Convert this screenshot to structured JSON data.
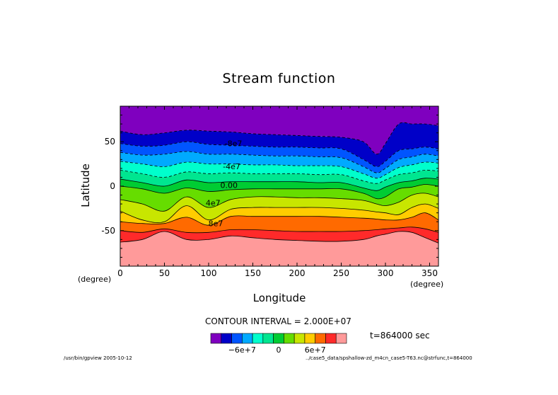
{
  "chart_data": {
    "type": "heatmap",
    "title": "Stream function",
    "xlabel": "Longitude",
    "ylabel": "Latitude",
    "x_unit": "(degree)",
    "y_unit": "(degree)",
    "xlim": [
      0,
      360
    ],
    "ylim": [
      -90,
      90
    ],
    "xticks": [
      0,
      50,
      100,
      150,
      200,
      250,
      300,
      350
    ],
    "yticks": [
      -50,
      0,
      50
    ],
    "contour_labels": [
      {
        "text": "-8e7",
        "lon": 128,
        "lat": 45
      },
      {
        "text": "-4e7",
        "lon": 126,
        "lat": 19
      },
      {
        "text": "0.00",
        "lon": 123,
        "lat": -2
      },
      {
        "text": "4e7",
        "lon": 105,
        "lat": -22
      },
      {
        "text": "8e7",
        "lon": 108,
        "lat": -45
      }
    ],
    "contour_interval": "CONTOUR INTERVAL = 2.000E+07",
    "time_label": "t=864000 sec",
    "colorbar": {
      "colors": [
        "#7f00bf",
        "#0000c8",
        "#0055ff",
        "#00aaff",
        "#00ffcc",
        "#00e690",
        "#00cc33",
        "#66dd00",
        "#c8e600",
        "#ffcc00",
        "#ff6a00",
        "#ff2a2a",
        "#ff9a9a"
      ],
      "tick_labels": [
        {
          "text": "−6e+7",
          "pos": 3
        },
        {
          "text": "0",
          "pos": 6.5
        },
        {
          "text": "6e+7",
          "pos": 10
        }
      ]
    },
    "levels_lat_profile": {
      "description_none": "",
      "longitudes": [
        0,
        25,
        50,
        75,
        100,
        125,
        150,
        175,
        200,
        225,
        250,
        275,
        290,
        300,
        315,
        330,
        345,
        360
      ],
      "boundaries": [
        [
          62,
          58,
          60,
          63,
          62,
          61,
          59,
          58,
          57,
          56,
          55,
          50,
          36,
          48,
          70,
          70,
          70,
          68
        ],
        [
          48,
          45,
          46,
          50,
          47,
          46,
          45,
          44,
          44,
          43,
          42,
          30,
          22,
          28,
          40,
          42,
          44,
          42
        ],
        [
          38,
          35,
          36,
          39,
          36,
          36,
          35,
          34,
          34,
          33,
          32,
          22,
          15,
          20,
          30,
          33,
          36,
          34
        ],
        [
          28,
          25,
          22,
          27,
          25,
          25,
          24,
          24,
          23,
          23,
          22,
          14,
          9,
          13,
          21,
          24,
          27,
          26
        ],
        [
          18,
          14,
          10,
          16,
          14,
          15,
          14,
          14,
          14,
          13,
          13,
          6,
          3,
          7,
          13,
          15,
          18,
          17
        ],
        [
          8,
          4,
          0,
          7,
          4,
          5,
          5,
          5,
          5,
          4,
          4,
          -2,
          -5,
          -1,
          4,
          6,
          9,
          8
        ],
        [
          0,
          -3,
          -8,
          -2,
          -6,
          -4,
          -3,
          -3,
          -3,
          -3,
          -3,
          -8,
          -14,
          -12,
          -3,
          -1,
          2,
          0
        ],
        [
          -15,
          -20,
          -28,
          -12,
          -24,
          -15,
          -12,
          -12,
          -13,
          -13,
          -14,
          -16,
          -20,
          -22,
          -18,
          -10,
          -8,
          -12
        ],
        [
          -28,
          -38,
          -40,
          -22,
          -38,
          -26,
          -24,
          -24,
          -24,
          -24,
          -25,
          -27,
          -29,
          -30,
          -32,
          -24,
          -20,
          -25
        ],
        [
          -40,
          -42,
          -42,
          -35,
          -44,
          -34,
          -34,
          -34,
          -34,
          -34,
          -35,
          -36,
          -37,
          -38,
          -38,
          -35,
          -30,
          -38
        ],
        [
          -50,
          -52,
          -48,
          -52,
          -52,
          -49,
          -49,
          -50,
          -51,
          -51,
          -51,
          -50,
          -49,
          -48,
          -47,
          -46,
          -48,
          -52
        ],
        [
          -63,
          -60,
          -51,
          -60,
          -60,
          -56,
          -58,
          -60,
          -61,
          -62,
          -62,
          -60,
          -56,
          -54,
          -51,
          -52,
          -58,
          -64
        ]
      ]
    }
  },
  "footer": {
    "left": "/usr/bin/gpview  2005-10-12",
    "right": "../case5_data/spshallow-zd_m4cn_case5-T63.nc@strfunc,t=864000"
  }
}
